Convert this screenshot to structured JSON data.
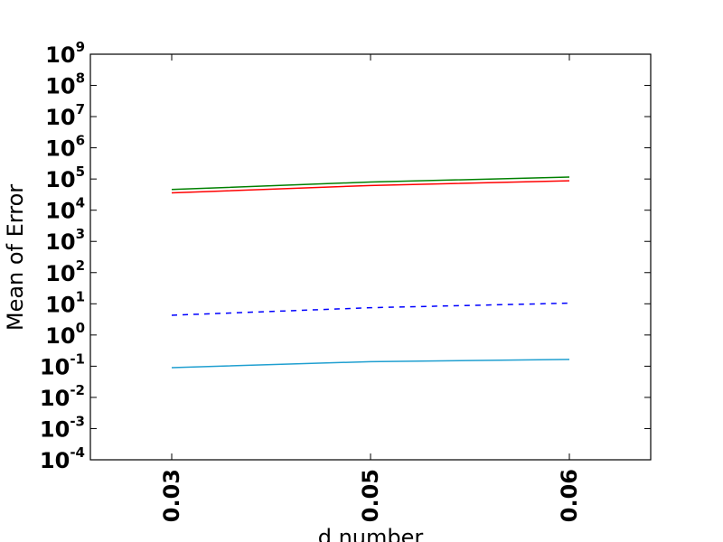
{
  "chart_data": {
    "type": "line",
    "title": "",
    "xlabel": "d number",
    "ylabel": "Mean of Error",
    "y_scale": "log",
    "ylim": [
      0.0001,
      1000000000
    ],
    "y_ticks": [
      {
        "base": "10",
        "exp": "-4"
      },
      {
        "base": "10",
        "exp": "-3"
      },
      {
        "base": "10",
        "exp": "-2"
      },
      {
        "base": "10",
        "exp": "-1"
      },
      {
        "base": "10",
        "exp": "0"
      },
      {
        "base": "10",
        "exp": "1"
      },
      {
        "base": "10",
        "exp": "2"
      },
      {
        "base": "10",
        "exp": "3"
      },
      {
        "base": "10",
        "exp": "4"
      },
      {
        "base": "10",
        "exp": "5"
      },
      {
        "base": "10",
        "exp": "6"
      },
      {
        "base": "10",
        "exp": "7"
      },
      {
        "base": "10",
        "exp": "8"
      },
      {
        "base": "10",
        "exp": "9"
      }
    ],
    "categories": [
      "0.03",
      "0.05",
      "0.06"
    ],
    "x_tick_labels_rotated": true,
    "grid": false,
    "legend": "none",
    "series": [
      {
        "color": "#008000",
        "style": "solid",
        "values": [
          46000,
          80000,
          115000
        ]
      },
      {
        "color": "#ff0000",
        "style": "solid",
        "values": [
          36000,
          62000,
          88000
        ]
      },
      {
        "color": "#0000ff",
        "style": "dashed",
        "values": [
          4.3,
          7.5,
          10.5
        ]
      },
      {
        "color": "#1f9fd0",
        "style": "solid",
        "values": [
          0.09,
          0.14,
          0.165
        ]
      }
    ]
  }
}
